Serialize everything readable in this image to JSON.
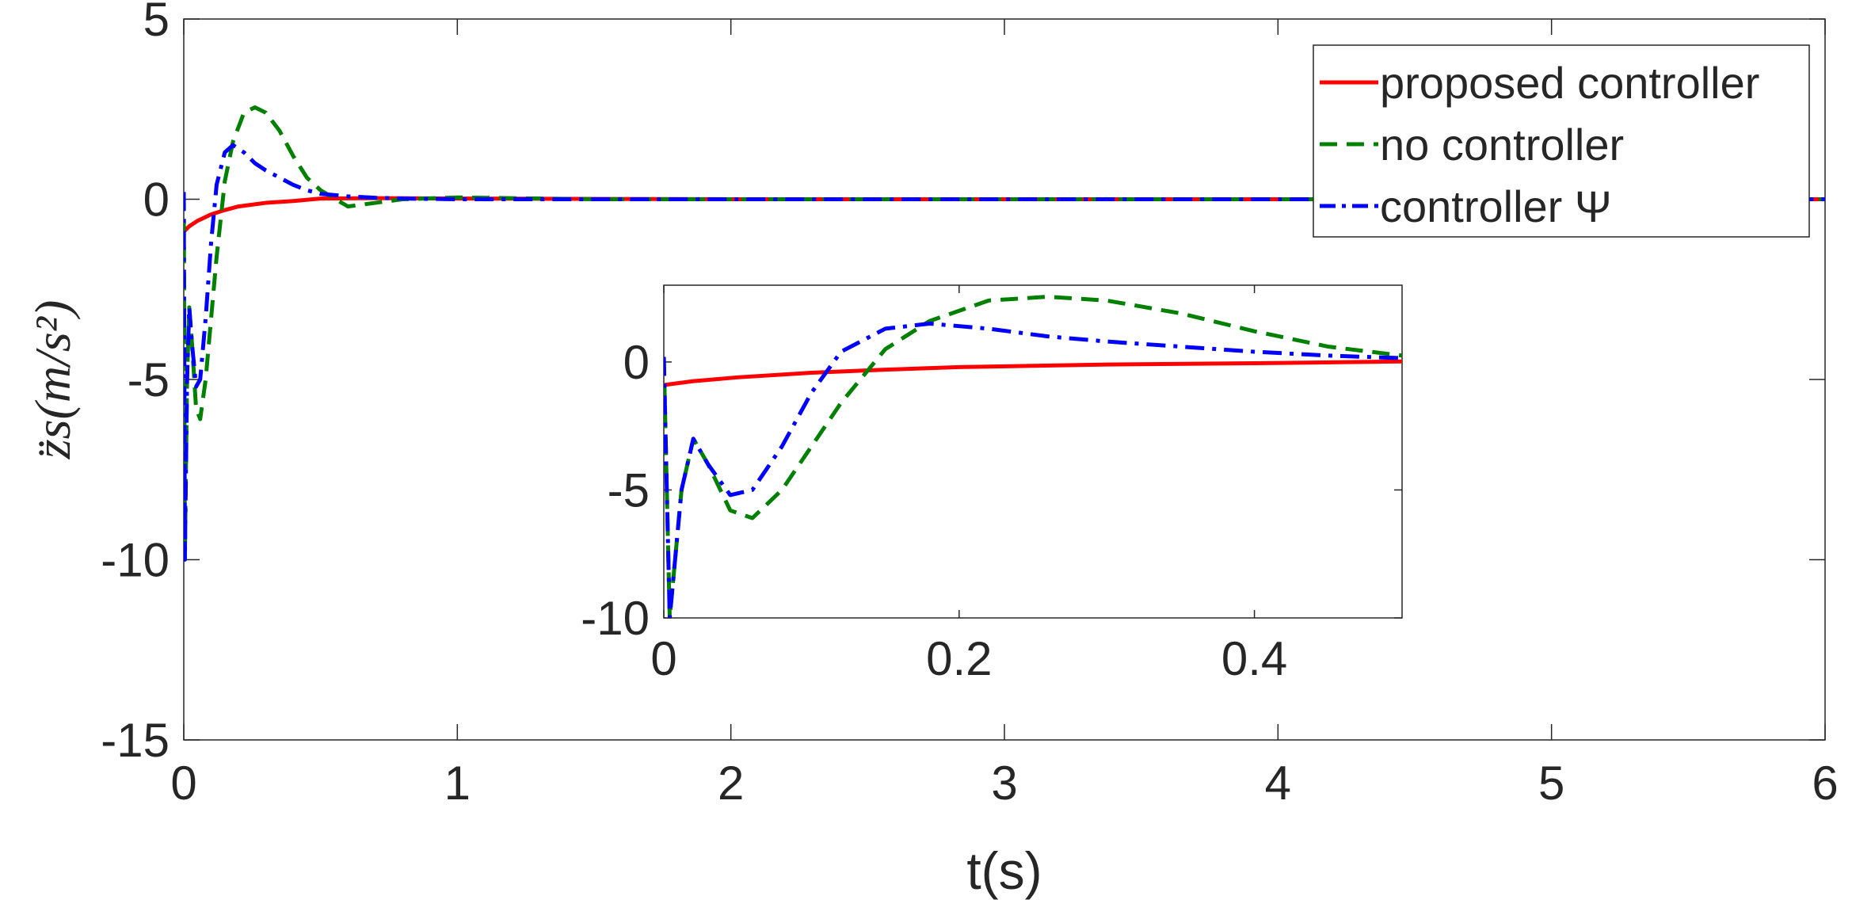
{
  "chart_data": {
    "type": "line",
    "xlabel": "t(s)",
    "ylabel": "z̈s(m/s²)",
    "xlim": [
      0,
      6
    ],
    "ylim": [
      -15,
      5
    ],
    "xticks": [
      0,
      1,
      2,
      3,
      4,
      5,
      6
    ],
    "yticks": [
      -15,
      -10,
      -5,
      0,
      5
    ],
    "xtick_labels": [
      "0",
      "1",
      "2",
      "3",
      "4",
      "5",
      "6"
    ],
    "ytick_labels": [
      "-15",
      "-10",
      "-5",
      "0",
      "5"
    ],
    "legend_position": "top-right",
    "grid": false,
    "series": [
      {
        "name": "proposed controller",
        "color": "#ff0000",
        "style": "solid",
        "x": [
          0,
          0.02,
          0.05,
          0.1,
          0.15,
          0.2,
          0.3,
          0.4,
          0.5,
          0.7,
          1.0,
          2.0,
          3.0,
          4.0,
          5.0,
          6.0
        ],
        "y": [
          -0.9,
          -0.75,
          -0.6,
          -0.42,
          -0.3,
          -0.2,
          -0.1,
          -0.05,
          0.02,
          0.03,
          0.02,
          0,
          0,
          0,
          0,
          0
        ]
      },
      {
        "name": "no controller",
        "color": "#008000",
        "style": "dashed",
        "x": [
          0,
          0.004,
          0.012,
          0.02,
          0.03,
          0.045,
          0.06,
          0.08,
          0.1,
          0.12,
          0.15,
          0.18,
          0.22,
          0.26,
          0.3,
          0.35,
          0.4,
          0.45,
          0.5,
          0.6,
          0.7,
          0.8,
          1.0,
          1.5,
          2.0,
          3.0,
          4.0,
          5.0,
          6.0
        ],
        "y": [
          0.2,
          -10,
          -5,
          -3,
          -4,
          -5.8,
          -6.1,
          -5,
          -3.3,
          -1.6,
          0.5,
          1.6,
          2.4,
          2.55,
          2.4,
          1.9,
          1.2,
          0.6,
          0.25,
          -0.2,
          -0.1,
          0,
          0.05,
          0,
          0,
          0,
          0,
          0,
          0
        ]
      },
      {
        "name": "controller Ψ",
        "color": "#0000ff",
        "style": "dashdot",
        "x": [
          0,
          0.004,
          0.012,
          0.02,
          0.03,
          0.045,
          0.06,
          0.08,
          0.1,
          0.12,
          0.15,
          0.18,
          0.22,
          0.26,
          0.3,
          0.35,
          0.4,
          0.45,
          0.5,
          0.6,
          0.7,
          0.8,
          1.0,
          1.5,
          2.0,
          3.0,
          4.0,
          5.0,
          6.0
        ],
        "y": [
          0.2,
          -10,
          -5,
          -3,
          -4,
          -5.2,
          -5.0,
          -3.3,
          -1.2,
          0.4,
          1.3,
          1.5,
          1.3,
          1.0,
          0.8,
          0.6,
          0.4,
          0.25,
          0.15,
          0.08,
          0.04,
          0.02,
          0,
          0,
          0,
          0,
          0,
          0,
          0
        ]
      }
    ],
    "inset": {
      "xlim": [
        0,
        0.5
      ],
      "ylim": [
        -10,
        3
      ],
      "xticks": [
        0,
        0.2,
        0.4
      ],
      "yticks": [
        -10,
        -5,
        0
      ],
      "xtick_labels": [
        "0",
        "0.2",
        "0.4"
      ],
      "ytick_labels": [
        "-10",
        "-5",
        "0"
      ]
    }
  }
}
